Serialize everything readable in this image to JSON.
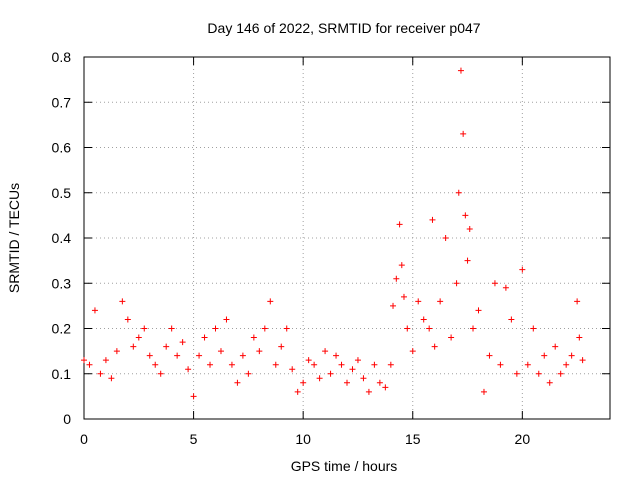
{
  "chart_data": {
    "type": "scatter",
    "title": "Day 146 of 2022, SRMTID for receiver p047",
    "xlabel": "GPS time / hours",
    "ylabel": "SRMTID / TECUs",
    "xlim": [
      0,
      24
    ],
    "ylim": [
      0,
      0.8
    ],
    "xticks": [
      0,
      5,
      10,
      15,
      20
    ],
    "xtick_labels": [
      "0",
      "5",
      "10",
      "15",
      "20"
    ],
    "yticks": [
      0,
      0.1,
      0.2,
      0.3,
      0.4,
      0.5,
      0.6,
      0.7,
      0.8
    ],
    "ytick_labels": [
      "0",
      "0.1",
      "0.2",
      "0.3",
      "0.4",
      "0.5",
      "0.6",
      "0.7",
      "0.8"
    ],
    "grid": true,
    "marker": "+",
    "color": "#ff0000",
    "series": [
      {
        "name": "p047",
        "x": [
          0.0,
          0.25,
          0.5,
          0.75,
          1.0,
          1.25,
          1.5,
          1.75,
          2.0,
          2.25,
          2.5,
          2.75,
          3.0,
          3.25,
          3.5,
          3.75,
          4.0,
          4.25,
          4.5,
          4.75,
          5.0,
          5.25,
          5.5,
          5.75,
          6.0,
          6.25,
          6.5,
          6.75,
          7.0,
          7.25,
          7.5,
          7.75,
          8.0,
          8.25,
          8.5,
          8.75,
          9.0,
          9.25,
          9.5,
          9.75,
          10.0,
          10.25,
          10.5,
          10.75,
          11.0,
          11.25,
          11.5,
          11.75,
          12.0,
          12.25,
          12.5,
          12.75,
          13.0,
          13.25,
          13.5,
          13.75,
          14.0,
          14.1,
          14.25,
          14.4,
          14.5,
          14.6,
          14.75,
          15.0,
          15.25,
          15.5,
          15.75,
          15.9,
          16.0,
          16.25,
          16.5,
          16.75,
          17.0,
          17.1,
          17.2,
          17.3,
          17.4,
          17.5,
          17.6,
          17.75,
          18.0,
          18.25,
          18.5,
          18.75,
          19.0,
          19.25,
          19.5,
          19.75,
          20.0,
          20.25,
          20.5,
          20.75,
          21.0,
          21.25,
          21.5,
          21.75,
          22.0,
          22.25,
          22.5,
          22.6,
          22.75
        ],
        "y": [
          0.13,
          0.12,
          0.24,
          0.1,
          0.13,
          0.09,
          0.15,
          0.26,
          0.22,
          0.16,
          0.18,
          0.2,
          0.14,
          0.12,
          0.1,
          0.16,
          0.2,
          0.14,
          0.17,
          0.11,
          0.05,
          0.14,
          0.18,
          0.12,
          0.2,
          0.15,
          0.22,
          0.12,
          0.08,
          0.14,
          0.1,
          0.18,
          0.15,
          0.2,
          0.26,
          0.12,
          0.16,
          0.2,
          0.11,
          0.06,
          0.08,
          0.13,
          0.12,
          0.09,
          0.15,
          0.1,
          0.14,
          0.12,
          0.08,
          0.11,
          0.13,
          0.09,
          0.06,
          0.12,
          0.08,
          0.07,
          0.12,
          0.25,
          0.31,
          0.43,
          0.34,
          0.27,
          0.2,
          0.15,
          0.26,
          0.22,
          0.2,
          0.44,
          0.16,
          0.26,
          0.4,
          0.18,
          0.3,
          0.5,
          0.77,
          0.63,
          0.45,
          0.35,
          0.42,
          0.2,
          0.24,
          0.06,
          0.14,
          0.3,
          0.12,
          0.29,
          0.22,
          0.1,
          0.33,
          0.12,
          0.2,
          0.1,
          0.14,
          0.08,
          0.16,
          0.1,
          0.12,
          0.14,
          0.26,
          0.18,
          0.13
        ]
      }
    ]
  }
}
